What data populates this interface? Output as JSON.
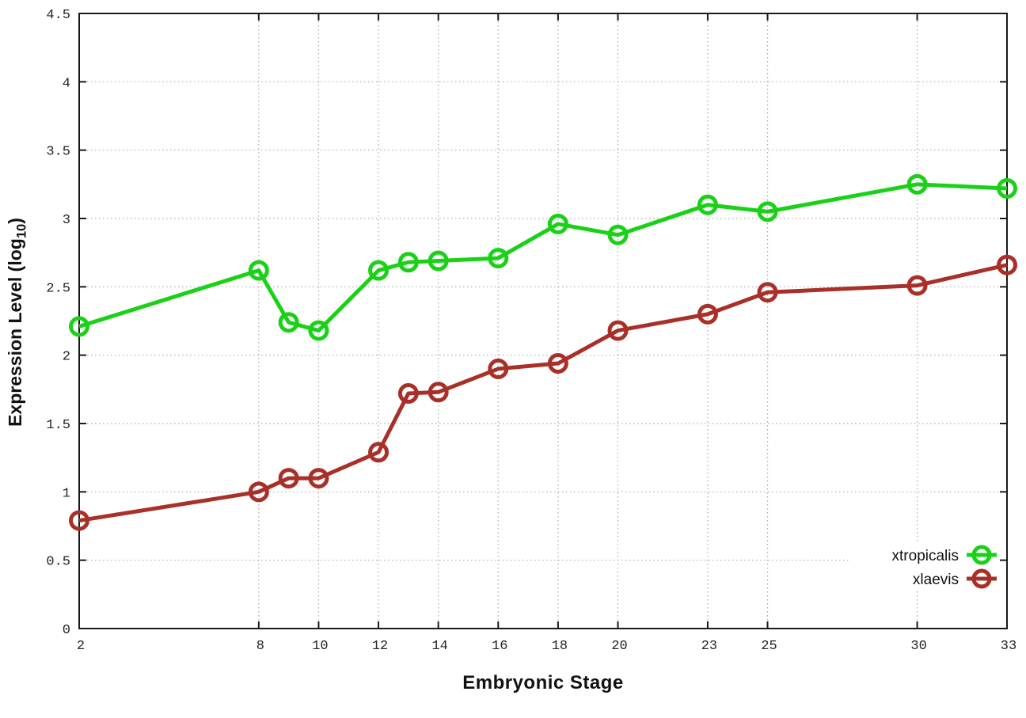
{
  "colors": {
    "background": "#ffffff",
    "axis": "#1a1a1a",
    "grid": "#aaaaaa",
    "tick_text": "#262626",
    "label_text": "#111111",
    "xtropicalis": "#1ad117",
    "xlaevis": "#a93028"
  },
  "chart_data": {
    "type": "line",
    "title": "",
    "xlabel": "Embryonic Stage",
    "ylabel": "Expression Level (log10)",
    "ylabel_parts": {
      "prefix": "Expression Level (log",
      "sub": "10",
      "suffix": ")"
    },
    "xlim": [
      2,
      33
    ],
    "ylim": [
      0,
      4.5
    ],
    "x": [
      2,
      8,
      9,
      10,
      12,
      13,
      14,
      16,
      18,
      20,
      23,
      25,
      30,
      33
    ],
    "xticks": [
      2,
      8,
      10,
      12,
      14,
      16,
      18,
      20,
      23,
      25,
      30,
      33
    ],
    "xtick_labels": [
      "2",
      "8",
      "10",
      "12",
      "14",
      "16",
      "18",
      "20",
      "23",
      "25",
      "30",
      "33"
    ],
    "yticks": [
      0,
      0.5,
      1,
      1.5,
      2,
      2.5,
      3,
      3.5,
      4,
      4.5
    ],
    "ytick_labels": [
      "0",
      "0.5",
      "1",
      "1.5",
      "2",
      "2.5",
      "3",
      "3.5",
      "4",
      "4.5"
    ],
    "grid": true,
    "legend_position": "bottom-right",
    "series": [
      {
        "name": "xtropicalis",
        "color": "#1ad117",
        "values": [
          2.21,
          2.62,
          2.24,
          2.18,
          2.62,
          2.68,
          2.69,
          2.71,
          2.96,
          2.88,
          3.1,
          3.05,
          3.25,
          3.22
        ]
      },
      {
        "name": "xlaevis",
        "color": "#a93028",
        "values": [
          0.79,
          1.0,
          1.1,
          1.1,
          1.29,
          1.72,
          1.73,
          1.9,
          1.94,
          2.18,
          2.3,
          2.46,
          2.51,
          2.66
        ]
      }
    ]
  }
}
